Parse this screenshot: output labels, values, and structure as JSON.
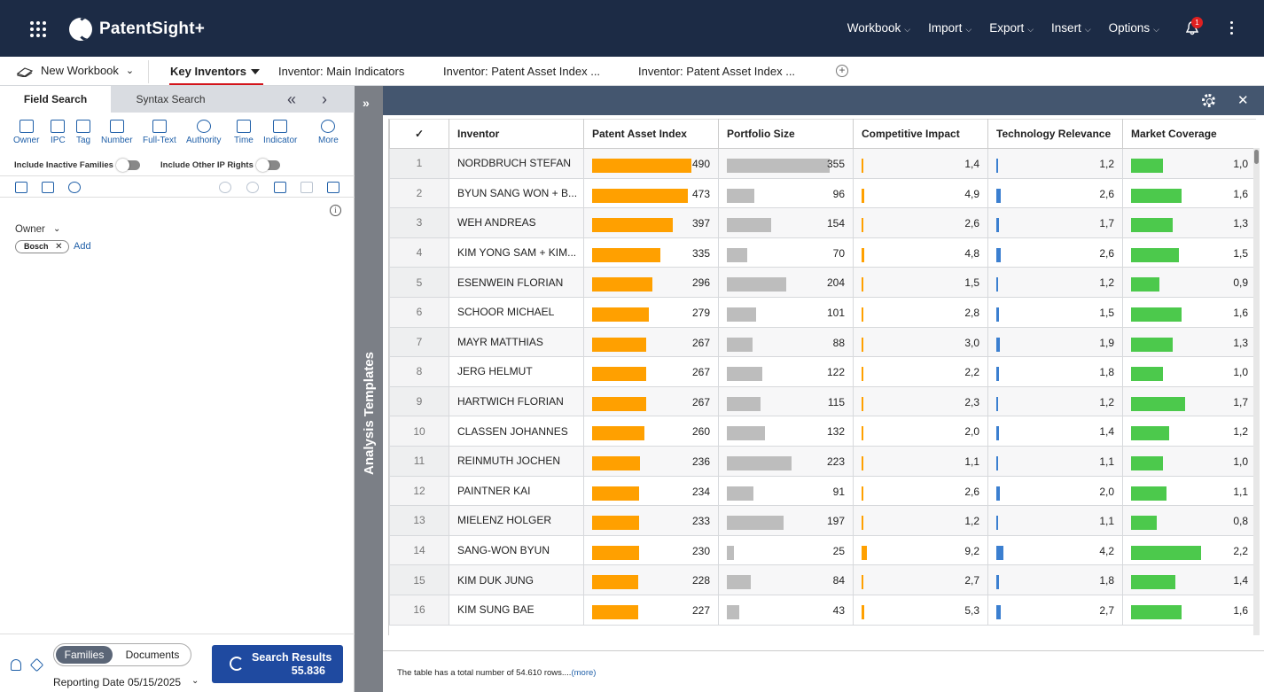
{
  "app": {
    "name": "PatentSight+",
    "notifications": "1"
  },
  "topmenu": [
    "Workbook",
    "Import",
    "Export",
    "Insert",
    "Options"
  ],
  "workbook": {
    "label": "New Workbook"
  },
  "tabs": [
    "Key Inventors",
    "Inventor: Main Indicators",
    "Inventor: Patent Asset Index ...",
    "Inventor: Patent Asset Index ..."
  ],
  "left": {
    "search_tabs": [
      "Field Search",
      "Syntax Search"
    ],
    "filters": [
      "Owner",
      "IPC",
      "Tag",
      "Number",
      "Full-Text",
      "Authority",
      "Time",
      "Indicator",
      "More"
    ],
    "toggles": [
      "Include Inactive Families",
      "Include Other IP Rights"
    ],
    "owner_label": "Owner",
    "owner_chip": "Bosch",
    "add_label": "Add",
    "segment": [
      "Families",
      "Documents"
    ],
    "reporting": "Reporting Date 05/15/2025",
    "search_results_label": "Search Results",
    "search_results_count": "55.836"
  },
  "strip": {
    "label": "Analysis Templates"
  },
  "table": {
    "columns": [
      "Inventor",
      "Patent Asset Index",
      "Portfolio Size",
      "Competitive Impact",
      "Technology Relevance",
      "Market Coverage"
    ],
    "rows": [
      [
        "1",
        "NORDBRUCH STEFAN",
        "490",
        "355",
        "1,4",
        "1,2",
        "1,0"
      ],
      [
        "2",
        "BYUN SANG WON + B...",
        "473",
        "96",
        "4,9",
        "2,6",
        "1,6"
      ],
      [
        "3",
        "WEH ANDREAS",
        "397",
        "154",
        "2,6",
        "1,7",
        "1,3"
      ],
      [
        "4",
        "KIM YONG SAM + KIM...",
        "335",
        "70",
        "4,8",
        "2,6",
        "1,5"
      ],
      [
        "5",
        "ESENWEIN FLORIAN",
        "296",
        "204",
        "1,5",
        "1,2",
        "0,9"
      ],
      [
        "6",
        "SCHOOR MICHAEL",
        "279",
        "101",
        "2,8",
        "1,5",
        "1,6"
      ],
      [
        "7",
        "MAYR MATTHIAS",
        "267",
        "88",
        "3,0",
        "1,9",
        "1,3"
      ],
      [
        "8",
        "JERG HELMUT",
        "267",
        "122",
        "2,2",
        "1,8",
        "1,0"
      ],
      [
        "9",
        "HARTWICH FLORIAN",
        "267",
        "115",
        "2,3",
        "1,2",
        "1,7"
      ],
      [
        "10",
        "CLASSEN JOHANNES",
        "260",
        "132",
        "2,0",
        "1,4",
        "1,2"
      ],
      [
        "11",
        "REINMUTH JOCHEN",
        "236",
        "223",
        "1,1",
        "1,1",
        "1,0"
      ],
      [
        "12",
        "PAINTNER KAI",
        "234",
        "91",
        "2,6",
        "2,0",
        "1,1"
      ],
      [
        "13",
        "MIELENZ HOLGER",
        "233",
        "197",
        "1,2",
        "1,1",
        "0,8"
      ],
      [
        "14",
        "SANG-WON BYUN",
        "230",
        "25",
        "9,2",
        "4,2",
        "2,2"
      ],
      [
        "15",
        "KIM DUK JUNG",
        "228",
        "84",
        "2,7",
        "1,8",
        "1,4"
      ],
      [
        "16",
        "KIM SUNG BAE",
        "227",
        "43",
        "5,3",
        "2,7",
        "1,6"
      ]
    ],
    "colors": {
      "pai": "#ffa000",
      "portfolio": "#bdbdbd",
      "impact": "#ffa000",
      "tech": "#3b7fd0",
      "market": "#4cc94c"
    },
    "footnote": "The table has a total number of 54.610 rows....",
    "more": "(more)"
  }
}
